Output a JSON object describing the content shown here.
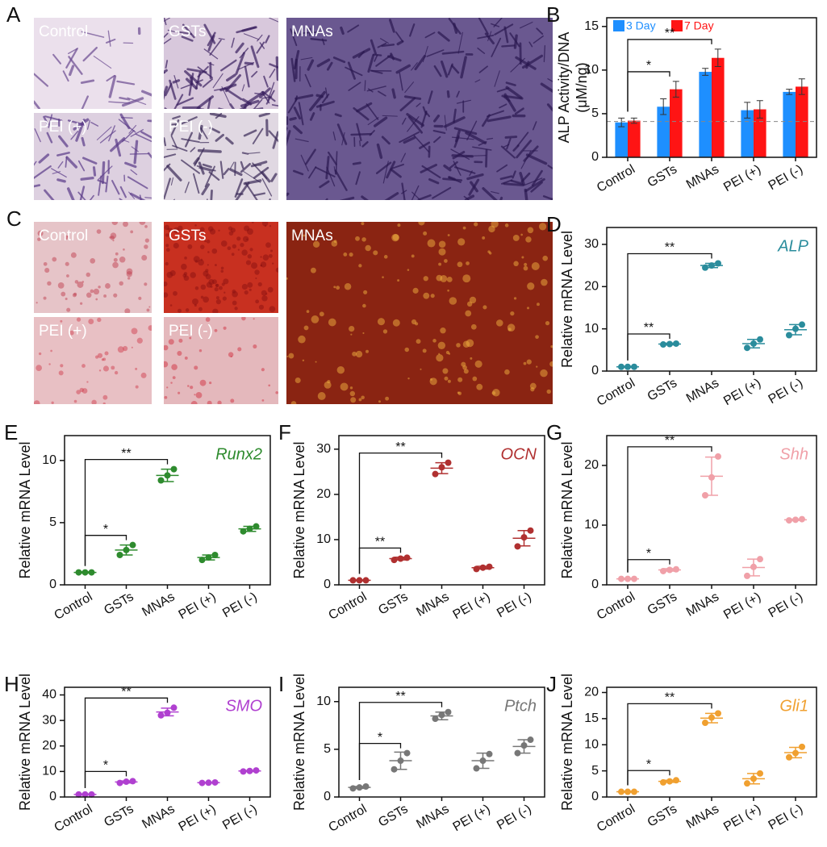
{
  "micrographs": [
    {
      "panel": "A",
      "images": [
        "Control",
        "GSTs",
        "MNAs",
        "PEI (+)",
        "PEI (-)"
      ]
    },
    {
      "panel": "C",
      "images": [
        "Control",
        "GSTs",
        "MNAs",
        "PEI (+)",
        "PEI (-)"
      ]
    }
  ],
  "chart_data": [
    {
      "type": "bar",
      "panel": "B",
      "ylabel": [
        "ALP Activity/DNA",
        "(μM/ng)"
      ],
      "categories": [
        "Control",
        "GSTs",
        "MNAs",
        "PEI (+)",
        "PEI (-)"
      ],
      "series": [
        {
          "name": "3 Day",
          "color": "#1e8fff",
          "values": [
            4.0,
            5.8,
            9.8,
            5.4,
            7.5
          ],
          "errors": [
            0.5,
            0.9,
            0.4,
            0.9,
            0.3
          ]
        },
        {
          "name": "7 Day",
          "color": "#ff1414",
          "values": [
            4.2,
            7.8,
            11.4,
            5.5,
            8.1
          ],
          "errors": [
            0.3,
            0.9,
            1.0,
            1.0,
            0.9
          ]
        }
      ],
      "reference": 4.1,
      "significance": [
        null,
        "*",
        "**",
        null,
        null
      ],
      "ylim": [
        0,
        16
      ],
      "yticks": [
        0,
        5,
        10,
        15
      ],
      "legend": "top-left"
    },
    {
      "type": "scatter",
      "panel": "D",
      "title": "ALP",
      "color": "#2a8c9c",
      "ylabel": "Relative mRNA Level",
      "categories": [
        "Control",
        "GSTs",
        "MNAs",
        "PEI (+)",
        "PEI (-)"
      ],
      "points": [
        [
          1,
          1,
          1
        ],
        [
          6.3,
          6.4,
          6.5
        ],
        [
          24.5,
          25,
          25.5
        ],
        [
          5.5,
          6.5,
          7.5
        ],
        [
          8.5,
          10,
          11
        ]
      ],
      "means": [
        1,
        6.4,
        25,
        6.5,
        9.8
      ],
      "sd": [
        0.1,
        0.2,
        0.5,
        1,
        1.2
      ],
      "significance": [
        null,
        "**",
        "**",
        null,
        null
      ],
      "ylim": [
        0,
        34
      ],
      "yticks": [
        0,
        10,
        20,
        30
      ]
    },
    {
      "type": "scatter",
      "panel": "E",
      "title": "Runx2",
      "color": "#2e8b2e",
      "ylabel": "Relative mRNA Level",
      "categories": [
        "Control",
        "GSTs",
        "MNAs",
        "PEI (+)",
        "PEI (-)"
      ],
      "points": [
        [
          1,
          1,
          1
        ],
        [
          2.4,
          2.8,
          3.2
        ],
        [
          8.4,
          8.8,
          9.3
        ],
        [
          2,
          2.2,
          2.4
        ],
        [
          4.3,
          4.5,
          4.7
        ]
      ],
      "means": [
        1,
        2.8,
        8.8,
        2.2,
        4.5
      ],
      "sd": [
        0.05,
        0.4,
        0.5,
        0.2,
        0.2
      ],
      "significance": [
        null,
        "*",
        "**",
        null,
        null
      ],
      "ylim": [
        0,
        12
      ],
      "yticks": [
        0,
        5,
        10
      ]
    },
    {
      "type": "scatter",
      "panel": "F",
      "title": "OCN",
      "color": "#b03030",
      "ylabel": "Relative mRNA Level",
      "categories": [
        "Control",
        "GSTs",
        "MNAs",
        "PEI (+)",
        "PEI (-)"
      ],
      "points": [
        [
          1,
          1,
          1
        ],
        [
          5.5,
          5.8,
          6
        ],
        [
          24.5,
          26,
          27
        ],
        [
          3.5,
          3.8,
          4
        ],
        [
          8.5,
          10.5,
          12
        ]
      ],
      "means": [
        1,
        5.8,
        25.8,
        3.8,
        10.3
      ],
      "sd": [
        0.1,
        0.3,
        1.2,
        0.3,
        1.7
      ],
      "significance": [
        null,
        "**",
        "**",
        null,
        null
      ],
      "ylim": [
        0,
        33
      ],
      "yticks": [
        0,
        10,
        20,
        30
      ]
    },
    {
      "type": "scatter",
      "panel": "G",
      "title": "Shh",
      "color": "#f0a0a8",
      "ylabel": "Relative mRNA Level",
      "categories": [
        "Control",
        "GSTs",
        "MNAs",
        "PEI (+)",
        "PEI (-)"
      ],
      "points": [
        [
          1,
          1,
          1
        ],
        [
          2.3,
          2.5,
          2.6
        ],
        [
          15,
          18,
          21.5
        ],
        [
          1.5,
          3,
          4.3
        ],
        [
          10.8,
          10.9,
          11
        ]
      ],
      "means": [
        1,
        2.5,
        18.2,
        2.9,
        10.9
      ],
      "sd": [
        0.1,
        0.2,
        3.2,
        1.4,
        0.1
      ],
      "significance": [
        null,
        "*",
        "**",
        null,
        null
      ],
      "ylim": [
        0,
        25
      ],
      "yticks": [
        0,
        10,
        20
      ]
    },
    {
      "type": "scatter",
      "panel": "H",
      "title": "SMO",
      "color": "#b040d0",
      "ylabel": "Relative mRNA Level",
      "categories": [
        "Control",
        "GSTs",
        "MNAs",
        "PEI (+)",
        "PEI (-)"
      ],
      "points": [
        [
          1,
          1,
          1
        ],
        [
          5.5,
          6,
          6.2
        ],
        [
          32,
          33,
          35
        ],
        [
          5.5,
          5.6,
          5.7
        ],
        [
          10,
          10.2,
          10.4
        ]
      ],
      "means": [
        1,
        5.9,
        33.3,
        5.6,
        10.2
      ],
      "sd": [
        0.1,
        0.4,
        1.5,
        0.1,
        0.2
      ],
      "significance": [
        null,
        "*",
        "**",
        null,
        null
      ],
      "ylim": [
        0,
        43
      ],
      "yticks": [
        0,
        10,
        20,
        30,
        40
      ]
    },
    {
      "type": "scatter",
      "panel": "I",
      "title": "Ptch",
      "color": "#777777",
      "ylabel": "Relative mRNA Level",
      "categories": [
        "Control",
        "GSTs",
        "MNAs",
        "PEI (+)",
        "PEI (-)"
      ],
      "points": [
        [
          0.9,
          1,
          1.1
        ],
        [
          2.9,
          3.8,
          4.6
        ],
        [
          8.2,
          8.6,
          8.9
        ],
        [
          3,
          3.8,
          4.5
        ],
        [
          4.6,
          5.4,
          6
        ]
      ],
      "means": [
        1,
        3.8,
        8.5,
        3.8,
        5.3
      ],
      "sd": [
        0.1,
        0.9,
        0.4,
        0.8,
        0.7
      ],
      "significance": [
        null,
        "*",
        "**",
        null,
        null
      ],
      "ylim": [
        0,
        11.5
      ],
      "yticks": [
        0,
        5,
        10
      ]
    },
    {
      "type": "scatter",
      "panel": "J",
      "title": "Gli1",
      "color": "#f0a030",
      "ylabel": "Relative mRNA Level",
      "categories": [
        "Control",
        "GSTs",
        "MNAs",
        "PEI (+)",
        "PEI (-)"
      ],
      "points": [
        [
          1,
          1,
          1
        ],
        [
          2.8,
          3,
          3.2
        ],
        [
          14.2,
          15.2,
          16
        ],
        [
          2.6,
          3.5,
          4.5
        ],
        [
          7.6,
          8.4,
          9.6
        ]
      ],
      "means": [
        1,
        3,
        15.1,
        3.5,
        8.5
      ],
      "sd": [
        0.1,
        0.2,
        0.9,
        1,
        1
      ],
      "significance": [
        null,
        "*",
        "**",
        null,
        null
      ],
      "ylim": [
        0,
        21
      ],
      "yticks": [
        0,
        5,
        10,
        15,
        20
      ]
    }
  ]
}
